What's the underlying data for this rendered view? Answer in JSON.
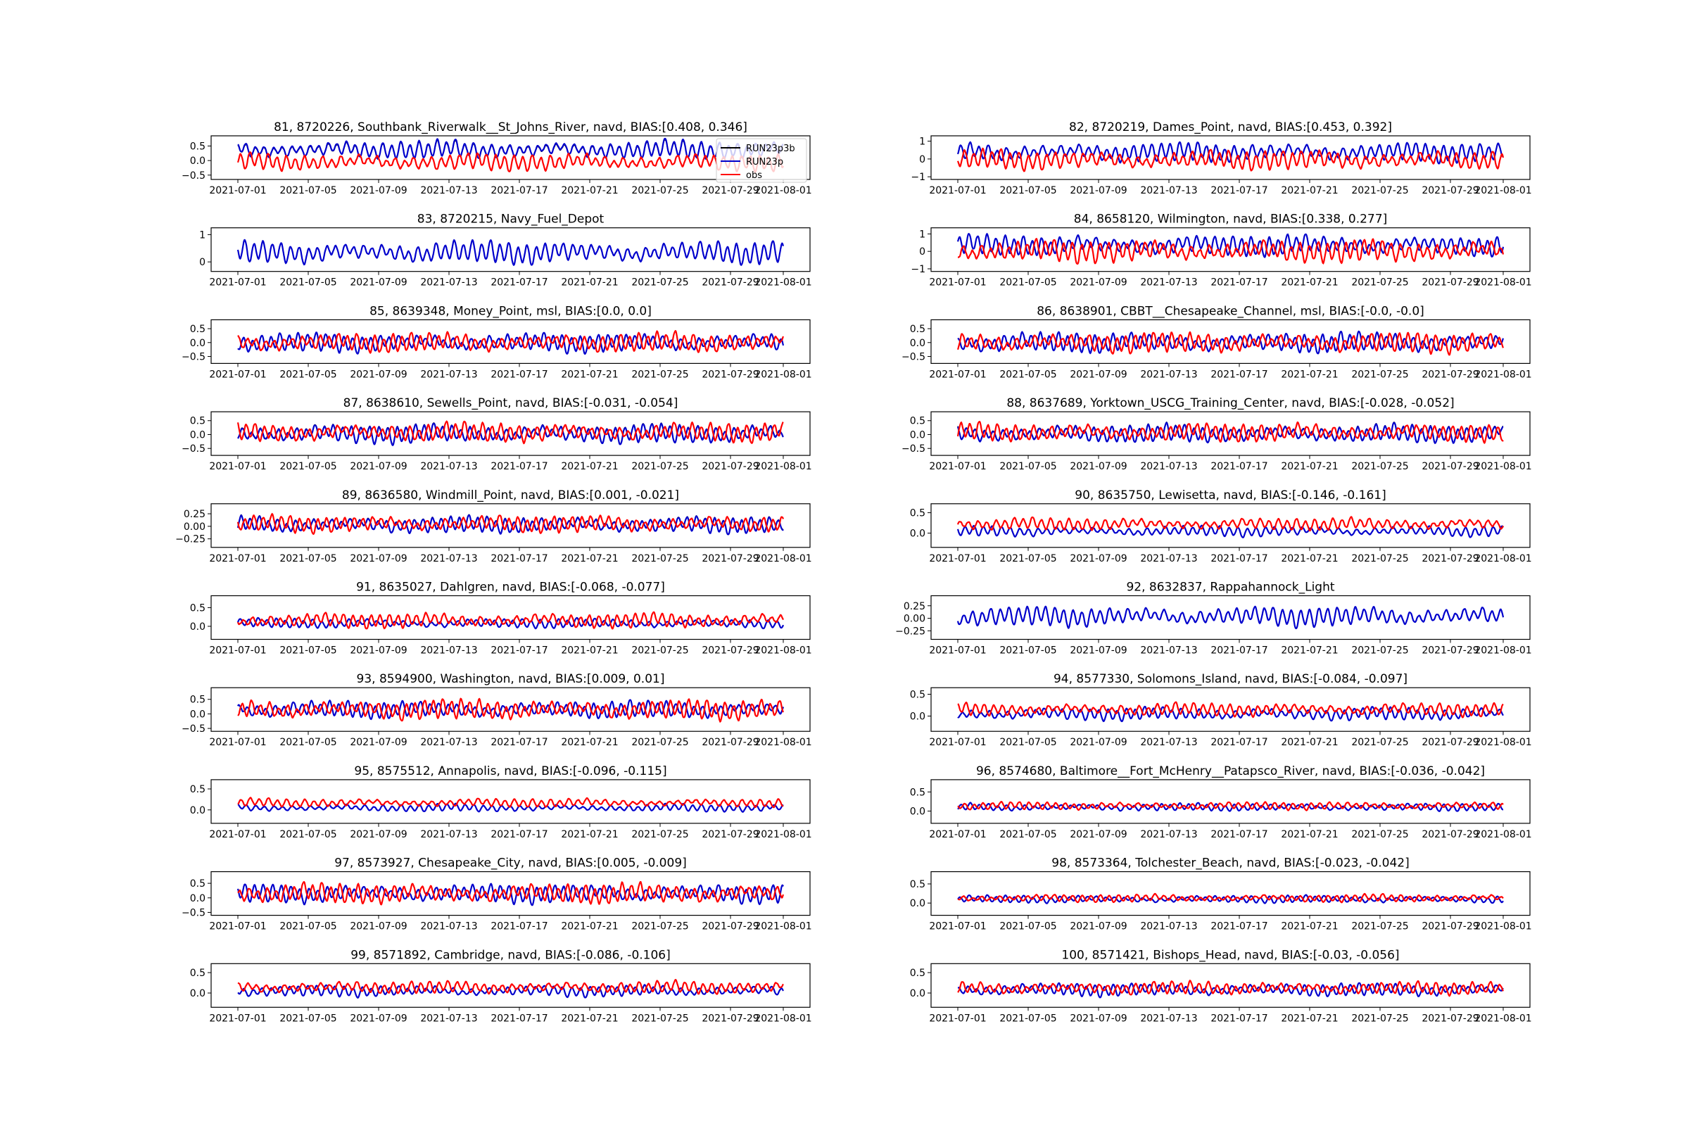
{
  "chart_data": [
    {
      "type": "line",
      "title": "81, 8720226, Southbank_Riverwalk__St_Johns_River, navd, BIAS:[0.408, 0.346]",
      "x_ticks": [
        "2021-07-01",
        "2021-07-05",
        "2021-07-09",
        "2021-07-13",
        "2021-07-17",
        "2021-07-21",
        "2021-07-25",
        "2021-07-29",
        "2021-08-01"
      ],
      "y_ticks": [
        "0.5",
        "0.0",
        "−0.5"
      ],
      "ylim": [
        -0.65,
        0.85
      ],
      "legend": {
        "position": "upper-right",
        "entries": [
          "RUN23p3b",
          "RUN23p",
          "obs"
        ]
      },
      "series": [
        {
          "name": "RUN23p3b",
          "color": "#000000",
          "mean": 0.35,
          "amp": 0.3
        },
        {
          "name": "RUN23p",
          "color": "#0000cc",
          "mean": 0.37,
          "amp": 0.32
        },
        {
          "name": "obs",
          "color": "#ff0000",
          "mean": -0.05,
          "amp": 0.3
        }
      ]
    },
    {
      "type": "line",
      "title": "82, 8720219, Dames_Point, navd, BIAS:[0.453, 0.392]",
      "x_ticks": [
        "2021-07-01",
        "2021-07-05",
        "2021-07-09",
        "2021-07-13",
        "2021-07-17",
        "2021-07-21",
        "2021-07-25",
        "2021-07-29",
        "2021-08-01"
      ],
      "y_ticks": [
        "1",
        "0",
        "−1"
      ],
      "ylim": [
        -1.15,
        1.3
      ],
      "series": [
        {
          "name": "RUN23p3b",
          "color": "#000000",
          "mean": 0.38,
          "amp": 0.55
        },
        {
          "name": "RUN23p",
          "color": "#0000cc",
          "mean": 0.38,
          "amp": 0.55
        },
        {
          "name": "obs",
          "color": "#ff0000",
          "mean": -0.05,
          "amp": 0.55
        }
      ]
    },
    {
      "type": "line",
      "title": "83, 8720215, Navy_Fuel_Depot",
      "x_ticks": [
        "2021-07-01",
        "2021-07-05",
        "2021-07-09",
        "2021-07-13",
        "2021-07-17",
        "2021-07-21",
        "2021-07-25",
        "2021-07-29",
        "2021-08-01"
      ],
      "y_ticks": [
        "1",
        "0"
      ],
      "ylim": [
        -0.35,
        1.25
      ],
      "series": [
        {
          "name": "RUN23p3b",
          "color": "#000000",
          "mean": 0.35,
          "amp": 0.42
        },
        {
          "name": "RUN23p",
          "color": "#0000cc",
          "mean": 0.35,
          "amp": 0.42
        }
      ]
    },
    {
      "type": "line",
      "title": "84, 8658120, Wilmington, navd, BIAS:[0.338, 0.277]",
      "x_ticks": [
        "2021-07-01",
        "2021-07-05",
        "2021-07-09",
        "2021-07-13",
        "2021-07-17",
        "2021-07-21",
        "2021-07-25",
        "2021-07-29",
        "2021-08-01"
      ],
      "y_ticks": [
        "1",
        "0",
        "−1"
      ],
      "ylim": [
        -1.15,
        1.35
      ],
      "series": [
        {
          "name": "RUN23p3b",
          "color": "#000000",
          "mean": 0.35,
          "amp": 0.6
        },
        {
          "name": "RUN23p",
          "color": "#0000cc",
          "mean": 0.35,
          "amp": 0.6
        },
        {
          "name": "obs",
          "color": "#ff0000",
          "mean": 0.02,
          "amp": 0.65
        }
      ]
    },
    {
      "type": "line",
      "title": "85, 8639348, Money_Point, msl, BIAS:[0.0, 0.0]",
      "x_ticks": [
        "2021-07-01",
        "2021-07-05",
        "2021-07-09",
        "2021-07-13",
        "2021-07-17",
        "2021-07-21",
        "2021-07-25",
        "2021-07-29",
        "2021-08-01"
      ],
      "y_ticks": [
        "0.5",
        "0.0",
        "−0.5"
      ],
      "ylim": [
        -0.75,
        0.82
      ],
      "series": [
        {
          "name": "RUN23p3b",
          "color": "#000000",
          "mean": 0.0,
          "amp": 0.35
        },
        {
          "name": "RUN23p",
          "color": "#0000cc",
          "mean": 0.0,
          "amp": 0.35
        },
        {
          "name": "obs",
          "color": "#ff0000",
          "mean": 0.0,
          "amp": 0.35
        }
      ]
    },
    {
      "type": "line",
      "title": "86, 8638901, CBBT__Chesapeake_Channel, msl, BIAS:[-0.0, -0.0]",
      "x_ticks": [
        "2021-07-01",
        "2021-07-05",
        "2021-07-09",
        "2021-07-13",
        "2021-07-17",
        "2021-07-21",
        "2021-07-25",
        "2021-07-29",
        "2021-08-01"
      ],
      "y_ticks": [
        "0.5",
        "0.0",
        "−0.5"
      ],
      "ylim": [
        -0.75,
        0.82
      ],
      "series": [
        {
          "name": "RUN23p3b",
          "color": "#000000",
          "mean": 0.0,
          "amp": 0.37
        },
        {
          "name": "RUN23p",
          "color": "#0000cc",
          "mean": 0.0,
          "amp": 0.37
        },
        {
          "name": "obs",
          "color": "#ff0000",
          "mean": 0.0,
          "amp": 0.37
        }
      ]
    },
    {
      "type": "line",
      "title": "87, 8638610, Sewells_Point, navd, BIAS:[-0.031, -0.054]",
      "x_ticks": [
        "2021-07-01",
        "2021-07-05",
        "2021-07-09",
        "2021-07-13",
        "2021-07-17",
        "2021-07-21",
        "2021-07-25",
        "2021-07-29",
        "2021-08-01"
      ],
      "y_ticks": [
        "0.5",
        "0.0",
        "−0.5"
      ],
      "ylim": [
        -0.75,
        0.82
      ],
      "series": [
        {
          "name": "RUN23p3b",
          "color": "#000000",
          "mean": 0.05,
          "amp": 0.35
        },
        {
          "name": "RUN23p",
          "color": "#0000cc",
          "mean": 0.03,
          "amp": 0.35
        },
        {
          "name": "obs",
          "color": "#ff0000",
          "mean": 0.08,
          "amp": 0.35
        }
      ]
    },
    {
      "type": "line",
      "title": "88, 8637689, Yorktown_USCG_Training_Center, navd, BIAS:[-0.028, -0.052]",
      "x_ticks": [
        "2021-07-01",
        "2021-07-05",
        "2021-07-09",
        "2021-07-13",
        "2021-07-17",
        "2021-07-21",
        "2021-07-25",
        "2021-07-29",
        "2021-08-01"
      ],
      "y_ticks": [
        "0.5",
        "0.0",
        "−0.5"
      ],
      "ylim": [
        -0.75,
        0.82
      ],
      "series": [
        {
          "name": "RUN23p3b",
          "color": "#000000",
          "mean": 0.05,
          "amp": 0.33
        },
        {
          "name": "RUN23p",
          "color": "#0000cc",
          "mean": 0.03,
          "amp": 0.33
        },
        {
          "name": "obs",
          "color": "#ff0000",
          "mean": 0.08,
          "amp": 0.33
        }
      ]
    },
    {
      "type": "line",
      "title": "89, 8636580, Windmill_Point, navd, BIAS:[0.001, -0.021]",
      "x_ticks": [
        "2021-07-01",
        "2021-07-05",
        "2021-07-09",
        "2021-07-13",
        "2021-07-17",
        "2021-07-21",
        "2021-07-25",
        "2021-07-29",
        "2021-08-01"
      ],
      "y_ticks": [
        "0.25",
        "0.00",
        "−0.25"
      ],
      "ylim": [
        -0.42,
        0.45
      ],
      "series": [
        {
          "name": "RUN23p3b",
          "color": "#000000",
          "mean": 0.04,
          "amp": 0.17
        },
        {
          "name": "RUN23p",
          "color": "#0000cc",
          "mean": 0.03,
          "amp": 0.17
        },
        {
          "name": "obs",
          "color": "#ff0000",
          "mean": 0.05,
          "amp": 0.17
        }
      ]
    },
    {
      "type": "line",
      "title": "90, 8635750, Lewisetta, navd, BIAS:[-0.146, -0.161]",
      "x_ticks": [
        "2021-07-01",
        "2021-07-05",
        "2021-07-09",
        "2021-07-13",
        "2021-07-17",
        "2021-07-21",
        "2021-07-25",
        "2021-07-29",
        "2021-08-01"
      ],
      "y_ticks": [
        "0.5",
        "0.0"
      ],
      "ylim": [
        -0.35,
        0.72
      ],
      "series": [
        {
          "name": "RUN23p3b",
          "color": "#000000",
          "mean": 0.05,
          "amp": 0.13
        },
        {
          "name": "RUN23p",
          "color": "#0000cc",
          "mean": 0.05,
          "amp": 0.13
        },
        {
          "name": "obs",
          "color": "#ff0000",
          "mean": 0.22,
          "amp": 0.15
        }
      ]
    },
    {
      "type": "line",
      "title": "91, 8635027, Dahlgren, navd, BIAS:[-0.068, -0.077]",
      "x_ticks": [
        "2021-07-01",
        "2021-07-05",
        "2021-07-09",
        "2021-07-13",
        "2021-07-17",
        "2021-07-21",
        "2021-07-25",
        "2021-07-29",
        "2021-08-01"
      ],
      "y_ticks": [
        "0.5",
        "0.0"
      ],
      "ylim": [
        -0.35,
        0.82
      ],
      "series": [
        {
          "name": "RUN23p3b",
          "color": "#000000",
          "mean": 0.08,
          "amp": 0.13
        },
        {
          "name": "RUN23p",
          "color": "#0000cc",
          "mean": 0.08,
          "amp": 0.13
        },
        {
          "name": "obs",
          "color": "#ff0000",
          "mean": 0.16,
          "amp": 0.2
        }
      ]
    },
    {
      "type": "line",
      "title": "92, 8632837, Rappahannock_Light",
      "x_ticks": [
        "2021-07-01",
        "2021-07-05",
        "2021-07-09",
        "2021-07-13",
        "2021-07-17",
        "2021-07-21",
        "2021-07-25",
        "2021-07-29",
        "2021-08-01"
      ],
      "y_ticks": [
        "0.25",
        "0.00",
        "−0.25"
      ],
      "ylim": [
        -0.42,
        0.45
      ],
      "series": [
        {
          "name": "RUN23p3b",
          "color": "#000000",
          "mean": 0.04,
          "amp": 0.2
        },
        {
          "name": "RUN23p",
          "color": "#0000cc",
          "mean": 0.04,
          "amp": 0.2
        }
      ]
    },
    {
      "type": "line",
      "title": "93, 8594900, Washington, navd, BIAS:[0.009, 0.01]",
      "x_ticks": [
        "2021-07-01",
        "2021-07-05",
        "2021-07-09",
        "2021-07-13",
        "2021-07-17",
        "2021-07-21",
        "2021-07-25",
        "2021-07-29",
        "2021-08-01"
      ],
      "y_ticks": [
        "0.5",
        "0.0",
        "−0.5"
      ],
      "ylim": [
        -0.6,
        0.9
      ],
      "series": [
        {
          "name": "RUN23p3b",
          "color": "#000000",
          "mean": 0.15,
          "amp": 0.3
        },
        {
          "name": "RUN23p",
          "color": "#0000cc",
          "mean": 0.15,
          "amp": 0.3
        },
        {
          "name": "obs",
          "color": "#ff0000",
          "mean": 0.15,
          "amp": 0.35
        }
      ]
    },
    {
      "type": "line",
      "title": "94, 8577330, Solomons_Island, navd, BIAS:[-0.084, -0.097]",
      "x_ticks": [
        "2021-07-01",
        "2021-07-05",
        "2021-07-09",
        "2021-07-13",
        "2021-07-17",
        "2021-07-21",
        "2021-07-25",
        "2021-07-29",
        "2021-08-01"
      ],
      "y_ticks": [
        "0.5",
        "0.0"
      ],
      "ylim": [
        -0.35,
        0.65
      ],
      "series": [
        {
          "name": "RUN23p3b",
          "color": "#000000",
          "mean": 0.05,
          "amp": 0.15
        },
        {
          "name": "RUN23p",
          "color": "#0000cc",
          "mean": 0.05,
          "amp": 0.15
        },
        {
          "name": "obs",
          "color": "#ff0000",
          "mean": 0.15,
          "amp": 0.15
        }
      ]
    },
    {
      "type": "line",
      "title": "95, 8575512, Annapolis, navd, BIAS:[-0.096, -0.115]",
      "x_ticks": [
        "2021-07-01",
        "2021-07-05",
        "2021-07-09",
        "2021-07-13",
        "2021-07-17",
        "2021-07-21",
        "2021-07-25",
        "2021-07-29",
        "2021-08-01"
      ],
      "y_ticks": [
        "0.5",
        "0.0"
      ],
      "ylim": [
        -0.32,
        0.72
      ],
      "series": [
        {
          "name": "RUN23p3b",
          "color": "#000000",
          "mean": 0.05,
          "amp": 0.09
        },
        {
          "name": "RUN23p",
          "color": "#0000cc",
          "mean": 0.05,
          "amp": 0.09
        },
        {
          "name": "obs",
          "color": "#ff0000",
          "mean": 0.17,
          "amp": 0.1
        }
      ]
    },
    {
      "type": "line",
      "title": "96, 8574680, Baltimore__Fort_McHenry__Patapsco_River, navd, BIAS:[-0.036, -0.042]",
      "x_ticks": [
        "2021-07-01",
        "2021-07-05",
        "2021-07-09",
        "2021-07-13",
        "2021-07-17",
        "2021-07-21",
        "2021-07-25",
        "2021-07-29",
        "2021-08-01"
      ],
      "y_ticks": [
        "0.5",
        "0.0"
      ],
      "ylim": [
        -0.32,
        0.82
      ],
      "series": [
        {
          "name": "RUN23p3b",
          "color": "#000000",
          "mean": 0.1,
          "amp": 0.1
        },
        {
          "name": "RUN23p",
          "color": "#0000cc",
          "mean": 0.1,
          "amp": 0.1
        },
        {
          "name": "obs",
          "color": "#ff0000",
          "mean": 0.14,
          "amp": 0.1
        }
      ]
    },
    {
      "type": "line",
      "title": "97, 8573927, Chesapeake_City, navd, BIAS:[0.005, -0.009]",
      "x_ticks": [
        "2021-07-01",
        "2021-07-05",
        "2021-07-09",
        "2021-07-13",
        "2021-07-17",
        "2021-07-21",
        "2021-07-25",
        "2021-07-29",
        "2021-08-01"
      ],
      "y_ticks": [
        "0.5",
        "0.0",
        "−0.5"
      ],
      "ylim": [
        -0.6,
        0.9
      ],
      "series": [
        {
          "name": "RUN23p3b",
          "color": "#000000",
          "mean": 0.15,
          "amp": 0.33
        },
        {
          "name": "RUN23p",
          "color": "#0000cc",
          "mean": 0.15,
          "amp": 0.33
        },
        {
          "name": "obs",
          "color": "#ff0000",
          "mean": 0.15,
          "amp": 0.35
        }
      ]
    },
    {
      "type": "line",
      "title": "98, 8573364, Tolchester_Beach, navd, BIAS:[-0.023, -0.042]",
      "x_ticks": [
        "2021-07-01",
        "2021-07-05",
        "2021-07-09",
        "2021-07-13",
        "2021-07-17",
        "2021-07-21",
        "2021-07-25",
        "2021-07-29",
        "2021-08-01"
      ],
      "y_ticks": [
        "0.5",
        "0.0"
      ],
      "ylim": [
        -0.32,
        0.82
      ],
      "series": [
        {
          "name": "RUN23p3b",
          "color": "#000000",
          "mean": 0.1,
          "amp": 0.1
        },
        {
          "name": "RUN23p",
          "color": "#0000cc",
          "mean": 0.1,
          "amp": 0.1
        },
        {
          "name": "obs",
          "color": "#ff0000",
          "mean": 0.13,
          "amp": 0.1
        }
      ]
    },
    {
      "type": "line",
      "title": "99, 8571892, Cambridge, navd, BIAS:[-0.086, -0.106]",
      "x_ticks": [
        "2021-07-01",
        "2021-07-05",
        "2021-07-09",
        "2021-07-13",
        "2021-07-17",
        "2021-07-21",
        "2021-07-25",
        "2021-07-29",
        "2021-08-01"
      ],
      "y_ticks": [
        "0.5",
        "0.0"
      ],
      "ylim": [
        -0.35,
        0.72
      ],
      "series": [
        {
          "name": "RUN23p3b",
          "color": "#000000",
          "mean": 0.05,
          "amp": 0.14
        },
        {
          "name": "RUN23p",
          "color": "#0000cc",
          "mean": 0.05,
          "amp": 0.14
        },
        {
          "name": "obs",
          "color": "#ff0000",
          "mean": 0.14,
          "amp": 0.15
        }
      ]
    },
    {
      "type": "line",
      "title": "100, 8571421, Bishops_Head, navd, BIAS:[-0.03, -0.056]",
      "x_ticks": [
        "2021-07-01",
        "2021-07-05",
        "2021-07-09",
        "2021-07-13",
        "2021-07-17",
        "2021-07-21",
        "2021-07-25",
        "2021-07-29",
        "2021-08-01"
      ],
      "y_ticks": [
        "0.5",
        "0.0"
      ],
      "ylim": [
        -0.35,
        0.72
      ],
      "series": [
        {
          "name": "RUN23p3b",
          "color": "#000000",
          "mean": 0.08,
          "amp": 0.16
        },
        {
          "name": "RUN23p",
          "color": "#0000cc",
          "mean": 0.08,
          "amp": 0.16
        },
        {
          "name": "obs",
          "color": "#ff0000",
          "mean": 0.12,
          "amp": 0.16
        }
      ]
    }
  ]
}
